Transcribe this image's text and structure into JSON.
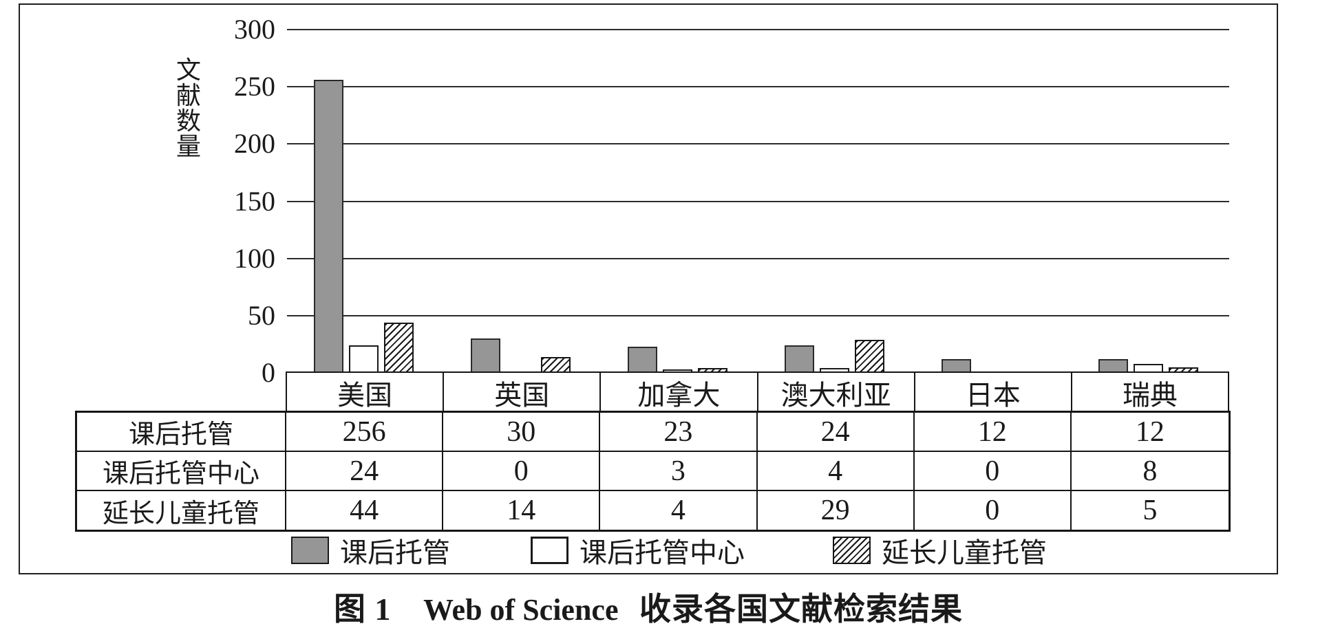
{
  "chart_data": {
    "type": "bar",
    "title": "图 1 Web of Science 收录各国文献检索结果",
    "ylabel": "文献数量",
    "ylabel_chars": "文\n献\n数\n量",
    "xlabel": "",
    "ylim": [
      0,
      300
    ],
    "yticks": [
      300,
      250,
      200,
      150,
      100,
      50,
      0
    ],
    "grid": "horizontal-only",
    "legend_position": "bottom-inside-frame",
    "categories": [
      "美国",
      "英国",
      "加拿大",
      "澳大利亚",
      "日本",
      "瑞典"
    ],
    "series": [
      {
        "name": "课后托管",
        "swatch": "gray",
        "values": [
          256,
          30,
          23,
          24,
          12,
          12
        ]
      },
      {
        "name": "课后托管中心",
        "swatch": "white",
        "values": [
          24,
          0,
          3,
          4,
          0,
          8
        ]
      },
      {
        "name": "延长儿童托管",
        "swatch": "hatch",
        "values": [
          44,
          14,
          4,
          29,
          0,
          5
        ]
      }
    ]
  },
  "legend": {
    "items": [
      {
        "label": "课后托管",
        "swatch": "gray"
      },
      {
        "label": "课后托管中心",
        "swatch": "white"
      },
      {
        "label": "延长儿童托管",
        "swatch": "hatch"
      }
    ]
  },
  "caption": {
    "cjk_prefix": "图 1",
    "latin": "Web of Science",
    "cjk_suffix": "收录各国文献检索结果"
  },
  "colors": {
    "bar_gray": "#969696",
    "bar_white": "#ffffff",
    "hatch_stroke": "#161616",
    "grid_line": "#2b2b2b",
    "border": "#1f1f1f",
    "text": "#1a1a1a",
    "background": "#ffffff"
  }
}
